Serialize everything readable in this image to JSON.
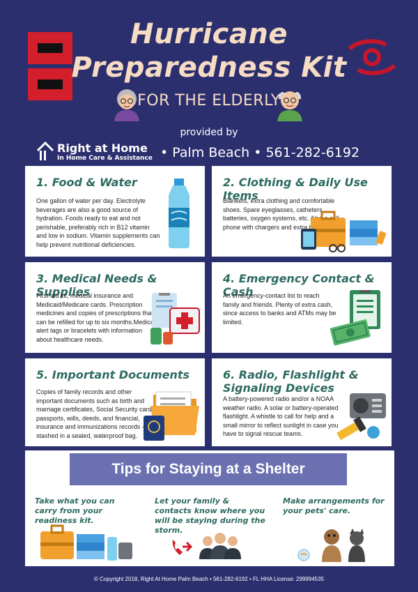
{
  "header": {
    "title_line1": "Hurricane",
    "title_line2": "Preparedness Kit",
    "subtitle": "FOR THE ELDERLY",
    "provided_by": "provided by",
    "logo_name": "Right at Home",
    "logo_tagline": "In Home Care & Assistance",
    "location_phone": "• Palm Beach •   561-282-6192"
  },
  "sections": [
    {
      "title": "1. Food & Water",
      "text": "One gallon of water per day. Electrolyte beverages are also a good source of hydration. Foods ready to eat and not perishable, preferably rich in B12 vitamin and low in sodium. Vitamin supplements can help prevent nutritional deficiencies."
    },
    {
      "title": "2. Clothing & Daily Use Items",
      "text": "Blankets, extra clothing and comfortable shoes. Spare eyeglasses, catheters, batteries, oxygen systems, etc.  Also a cell phone with chargers and extra batteries."
    },
    {
      "title": "3. Medical Needs & Supplies",
      "text": "First-aid kit, medical insurance and Medicaid/Medicare cards. Prescription medicines and copies of prescriptions that can be refilled for up to six months.Medical-alert tags or bracelets with information about healthcare needs."
    },
    {
      "title": "4. Emergency Contact & Cash",
      "text": "An emergency-contact list to reach family and friends. Plenty of extra cash, since access to banks and ATMs may be limited."
    },
    {
      "title": "5. Important Documents",
      "text": "Copies of family records and other important documents such as birth and marriage certificates, Social Security cards, passports, wills, deeds, and financial, insurance and immunizations records – all stashed in a sealed, waterproof bag."
    },
    {
      "title": "6. Radio, Flashlight & Signaling Devices",
      "text": "A battery-powered radio and/or a NOAA weather radio. A solar or battery-operated flashlight. A whistle to call for help and a small mirror to reflect sunlight in case you have to signal rescue teams."
    }
  ],
  "tips": {
    "heading": "Tips for Staying at a Shelter",
    "items": [
      "Take what you can carry from your readiness kit.",
      "Let your family & contacts know where you will be staying during the storm.",
      "Make arrangements for your pets' care."
    ]
  },
  "footer": "© Copyright 2018, Right At Home Palm Beach • 561-282-6192 • FL HHA License: 299994535",
  "colors": {
    "background": "#2c2f6e",
    "title": "#f6dcc4",
    "section_title": "#2d6b61",
    "tips_bar": "#6b70b0",
    "flag_red": "#d21f2b"
  }
}
